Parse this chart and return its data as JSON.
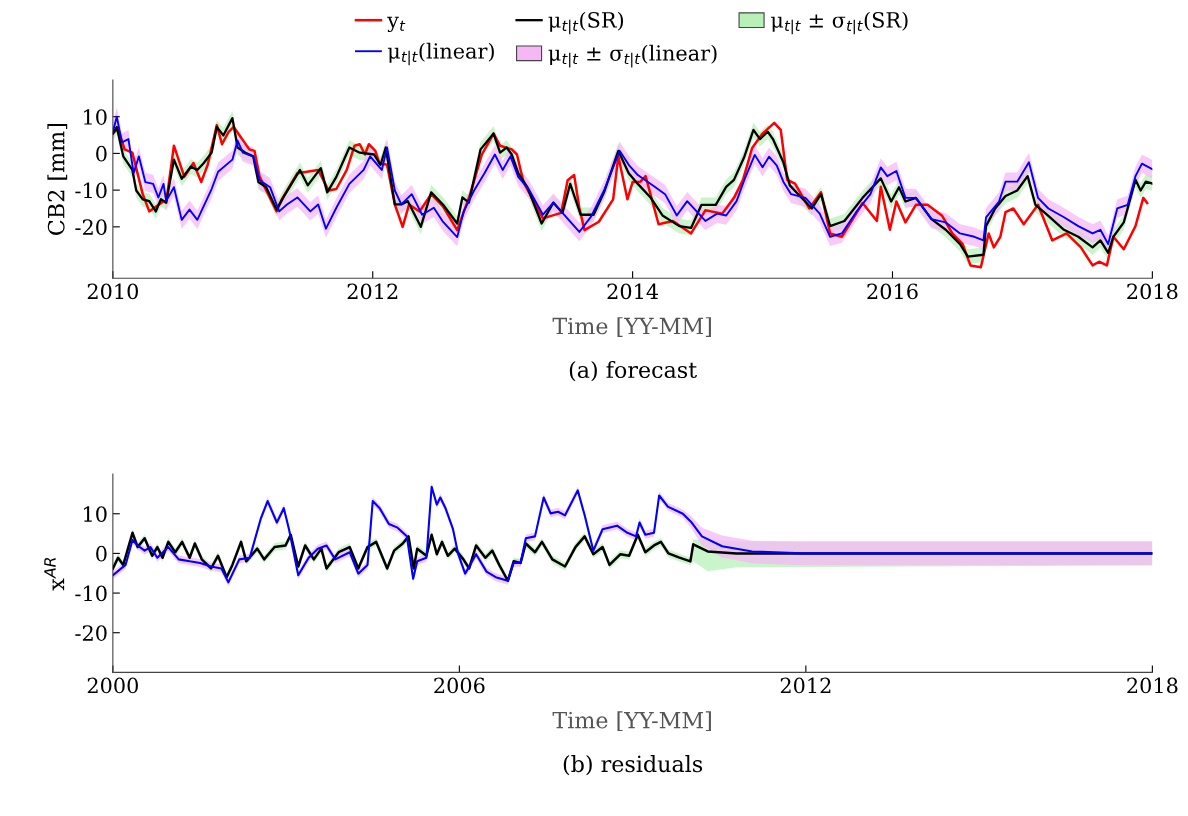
{
  "chart_data": [
    {
      "type": "line",
      "xlabel": "Time [YY-MM]",
      "ylabel": "CB2 [mm]",
      "annotations": [
        "(a) forecast"
      ],
      "xlim": [
        2010,
        2018
      ],
      "xticks": [
        2010,
        2012,
        2014,
        2016,
        2018
      ],
      "ylim": [
        -34,
        20
      ],
      "yticks": [
        -20,
        -10,
        0,
        10
      ],
      "grid": false,
      "legend": "top",
      "marker": "none",
      "line_style": "solid",
      "series": [
        {
          "name": "y$_{t}$",
          "color": "#ff0000",
          "x": [
            2010.0,
            2010.04,
            2010.09,
            2010.15,
            2010.23,
            2010.28,
            2010.39,
            2010.41,
            2010.47,
            2010.55,
            2010.62,
            2010.68,
            2010.73,
            2010.8,
            2010.84,
            2010.89,
            2010.93,
            2011.05,
            2011.09,
            2011.13,
            2011.26,
            2011.3,
            2011.42,
            2011.58,
            2011.66,
            2011.72,
            2011.8,
            2011.86,
            2011.9,
            2011.94,
            2011.97,
            2012.02,
            2012.05,
            2012.11,
            2012.17,
            2012.23,
            2012.28,
            2012.36,
            2012.45,
            2012.54,
            2012.65,
            2012.75,
            2012.84,
            2012.93,
            2012.98,
            2013.07,
            2013.11,
            2013.16,
            2013.31,
            2013.45,
            2013.5,
            2013.55,
            2013.59,
            2013.63,
            2013.74,
            2013.85,
            2013.89,
            2013.96,
            2014.0,
            2014.06,
            2014.1,
            2014.2,
            2014.31,
            2014.45,
            2014.56,
            2014.69,
            2014.78,
            2014.85,
            2014.92,
            2015.0,
            2015.09,
            2015.14,
            2015.19,
            2015.25,
            2015.36,
            2015.45,
            2015.52,
            2015.61,
            2015.77,
            2015.88,
            2015.91,
            2015.98,
            2016.03,
            2016.1,
            2016.18,
            2016.27,
            2016.38,
            2016.46,
            2016.54,
            2016.6,
            2016.68,
            2016.74,
            2016.78,
            2016.83,
            2016.87,
            2016.93,
            2017.01,
            2017.12,
            2017.23,
            2017.34,
            2017.45,
            2017.54,
            2017.59,
            2017.65,
            2017.7,
            2017.78,
            2017.87,
            2017.93,
            2017.96
          ],
          "values": [
            5.4,
            6.8,
            1.1,
            0.2,
            -11.1,
            -15.8,
            -13,
            -13.4,
            2.1,
            -6.4,
            -2.6,
            -7.8,
            -3.1,
            7.7,
            2.5,
            5.8,
            7.2,
            1.1,
            0.7,
            -6.4,
            -15.8,
            -12.5,
            -5.4,
            -4.5,
            -10.1,
            -9.7,
            -4.5,
            2.1,
            2.5,
            -0.3,
            2.5,
            0.7,
            -2.6,
            -3.1,
            -13.9,
            -20,
            -13.9,
            -15.8,
            -11.1,
            -14.4,
            -20.9,
            -11.1,
            -0.3,
            5.4,
            2.1,
            1.1,
            -0.3,
            -7.8,
            -17.7,
            -16.2,
            -7.3,
            -5.9,
            -14.8,
            -20.9,
            -18.6,
            -12.5,
            -0.8,
            -12.5,
            -7.8,
            -7.7,
            -6.2,
            -19.3,
            -18.4,
            -21.8,
            -15.5,
            -16.4,
            -12.1,
            -7.2,
            1.5,
            5.4,
            8.3,
            6.4,
            -7.2,
            -8.2,
            -15,
            -10.6,
            -21.8,
            -22.7,
            -13.5,
            -18.4,
            -9.1,
            -20.8,
            -13.1,
            -18.8,
            -14,
            -14,
            -16.9,
            -21.8,
            -24.7,
            -30.5,
            -31,
            -21.8,
            -25.6,
            -22.7,
            -16,
            -15,
            -19.3,
            -14,
            -23.7,
            -21.8,
            -25.6,
            -30.5,
            -29.5,
            -30.5,
            -22.7,
            -26.1,
            -19.8,
            -12.1,
            -13.5
          ]
        },
        {
          "name": "μ$_{t|t}$(SR)",
          "color": "#000000",
          "x": [
            2010.0,
            2010.03,
            2010.08,
            2010.15,
            2010.18,
            2010.23,
            2010.28,
            2010.33,
            2010.37,
            2010.41,
            2010.47,
            2010.53,
            2010.6,
            2010.65,
            2010.7,
            2010.76,
            2010.8,
            2010.85,
            2010.92,
            2010.96,
            2011.02,
            2011.08,
            2011.12,
            2011.18,
            2011.26,
            2011.32,
            2011.44,
            2011.5,
            2011.6,
            2011.65,
            2011.72,
            2011.82,
            2011.9,
            2012.01,
            2012.06,
            2012.1,
            2012.17,
            2012.22,
            2012.27,
            2012.37,
            2012.45,
            2012.54,
            2012.65,
            2012.69,
            2012.74,
            2012.83,
            2012.93,
            2012.98,
            2013.03,
            2013.07,
            2013.12,
            2013.19,
            2013.3,
            2013.39,
            2013.46,
            2013.52,
            2013.6,
            2013.7,
            2013.78,
            2013.89,
            2013.97,
            2014.04,
            2014.14,
            2014.23,
            2014.36,
            2014.45,
            2014.53,
            2014.64,
            2014.72,
            2014.78,
            2014.86,
            2014.93,
            2014.98,
            2015.04,
            2015.08,
            2015.16,
            2015.21,
            2015.3,
            2015.38,
            2015.45,
            2015.52,
            2015.63,
            2015.77,
            2015.91,
            2015.99,
            2016.05,
            2016.1,
            2016.18,
            2016.3,
            2016.41,
            2016.52,
            2016.58,
            2016.7,
            2016.72,
            2016.79,
            2016.87,
            2016.96,
            2017.04,
            2017.1,
            2017.18,
            2017.32,
            2017.43,
            2017.54,
            2017.6,
            2017.66,
            2017.7,
            2017.78,
            2017.87,
            2017.91,
            2017.95,
            2018.0
          ],
          "values": [
            5.4,
            7.2,
            -0.8,
            -4.5,
            -10.1,
            -12.5,
            -13,
            -15.8,
            -12.5,
            -13.4,
            -1.7,
            -6.9,
            -3.6,
            -4.5,
            -2.6,
            0.2,
            7.2,
            4.9,
            9.6,
            1.6,
            0.2,
            -0.8,
            -7.8,
            -9.2,
            -15.3,
            -11.5,
            -4.5,
            -8.7,
            -4,
            -10.6,
            -6.4,
            1.6,
            0.2,
            -0.3,
            -3.1,
            1.6,
            -13.9,
            -13.9,
            -13,
            -20,
            -10.6,
            -13.9,
            -19.1,
            -12,
            -13.4,
            1.1,
            5.4,
            0.2,
            1.6,
            -0.3,
            -5.4,
            -9.2,
            -19.1,
            -13.4,
            -16.2,
            -8.3,
            -16.7,
            -16.7,
            -10.6,
            0.7,
            -5.4,
            -8.3,
            -12.1,
            -16.9,
            -19.8,
            -20.3,
            -14,
            -14,
            -9.1,
            -7.2,
            -0.9,
            6.4,
            3.9,
            5.9,
            3.9,
            -2.4,
            -8.7,
            -12.1,
            -15,
            -11.1,
            -19.8,
            -18.4,
            -12.1,
            -6.8,
            -13.1,
            -9.2,
            -13.1,
            -12.1,
            -17.9,
            -20.8,
            -24.7,
            -28.1,
            -27.6,
            -19.8,
            -15,
            -11.6,
            -10.1,
            -6.2,
            -14,
            -16.4,
            -20.8,
            -22.7,
            -25.6,
            -23.7,
            -27.1,
            -22.7,
            -18.8,
            -7.2,
            -10.1,
            -7.7,
            -8.2
          ],
          "lower": [
            3.4,
            5.2,
            -2.8,
            -6.5,
            -12.1,
            -14.5,
            -15,
            -17.8,
            -14.5,
            -15.4,
            -3.7,
            -8.9,
            -5.6,
            -6.5,
            -4.6,
            -1.8,
            5.2,
            2.9,
            7.6,
            -0.4,
            -1.8,
            -2.8,
            -9.8,
            -11.2,
            -17.3,
            -13.5,
            -6.5,
            -10.7,
            -6,
            -12.6,
            -8.4,
            -0.4,
            -1.8,
            -2.3,
            -5.1,
            -0.4,
            -15.9,
            -15.9,
            -15,
            -22,
            -12.6,
            -15.9,
            -21.1,
            -14,
            -15.4,
            -0.9,
            3.4,
            -1.8,
            -0.4,
            -2.3,
            -7.4,
            -11.2,
            -21.1,
            -15.4,
            -18.2,
            -10.3,
            -18.7,
            -18.7,
            -12.6,
            -1.3,
            -7.4,
            -10.3,
            -14.1,
            -18.9,
            -21.8,
            -22.3,
            -16,
            -16,
            -11.1,
            -9.2,
            -2.9,
            4.4,
            1.9,
            3.9,
            1.9,
            -4.4,
            -10.7,
            -14.1,
            -17,
            -13.1,
            -21.8,
            -20.4,
            -14.1,
            -8.8,
            -15.1,
            -11.2,
            -15.1,
            -14.1,
            -19.9,
            -22.8,
            -26.7,
            -30.1,
            -29.6,
            -21.8,
            -17,
            -13.6,
            -12.1,
            -8.2,
            -16,
            -18.4,
            -22.8,
            -24.7,
            -27.6,
            -25.7,
            -29.1,
            -24.7,
            -20.8,
            -9.2,
            -12.1,
            -9.7,
            -10.2
          ],
          "upper": [
            7.4,
            9.2,
            1.2,
            -2.5,
            -8.1,
            -10.5,
            -11,
            -13.8,
            -10.5,
            -11.4,
            0.3,
            -4.9,
            -1.6,
            -2.5,
            -0.6,
            2.2,
            9.2,
            6.9,
            11.6,
            3.6,
            2.2,
            1.2,
            -5.8,
            -7.2,
            -13.3,
            -9.5,
            -2.5,
            -6.7,
            -2,
            -8.6,
            -4.4,
            3.6,
            2.2,
            1.7,
            -1.1,
            3.6,
            -11.9,
            -11.9,
            -11,
            -18,
            -8.6,
            -11.9,
            -17.1,
            -10,
            -11.4,
            3.1,
            7.4,
            2.2,
            3.6,
            1.7,
            -3.4,
            -7.2,
            -17.1,
            -11.4,
            -14.2,
            -6.3,
            -14.7,
            -14.7,
            -8.6,
            2.7,
            -3.4,
            -6.3,
            -10.1,
            -14.9,
            -17.8,
            -18.3,
            -12,
            -12,
            -7.1,
            -5.2,
            1.1,
            8.4,
            5.9,
            7.9,
            5.9,
            -0.4,
            -6.7,
            -10.1,
            -13,
            -9.1,
            -17.8,
            -16.4,
            -10.1,
            -4.8,
            -11.1,
            -7.2,
            -11.1,
            -10.1,
            -15.9,
            -18.8,
            -22.7,
            -26.1,
            -25.6,
            -17.8,
            -13,
            -9.6,
            -8.1,
            -4.2,
            -12,
            -14.4,
            -18.8,
            -20.7,
            -23.6,
            -21.7,
            -25.1,
            -20.7,
            -16.8,
            -5.2,
            -8.1,
            -5.7,
            -6.2
          ]
        },
        {
          "name": "μ$_{t|t}$ ± σ$_{t|t}$(SR)",
          "type": "area",
          "color": "#b8f0b8"
        },
        {
          "name": "μ$_{t|t}$(linear)",
          "color": "#0000ff",
          "x": [
            2010.0,
            2010.03,
            2010.07,
            2010.12,
            2010.16,
            2010.2,
            2010.25,
            2010.31,
            2010.35,
            2010.39,
            2010.41,
            2010.47,
            2010.53,
            2010.59,
            2010.65,
            2010.76,
            2010.81,
            2010.92,
            2010.96,
            2011.0,
            2011.08,
            2011.13,
            2011.21,
            2011.28,
            2011.34,
            2011.42,
            2011.52,
            2011.58,
            2011.64,
            2011.72,
            2011.82,
            2011.93,
            2011.98,
            2012.07,
            2012.11,
            2012.17,
            2012.22,
            2012.3,
            2012.38,
            2012.47,
            2012.54,
            2012.65,
            2012.7,
            2012.78,
            2012.86,
            2012.94,
            2013.0,
            2013.06,
            2013.12,
            2013.2,
            2013.31,
            2013.39,
            2013.52,
            2013.59,
            2013.68,
            2013.78,
            2013.9,
            2013.97,
            2014.04,
            2014.17,
            2014.25,
            2014.34,
            2014.42,
            2014.56,
            2014.65,
            2014.72,
            2014.8,
            2014.86,
            2014.94,
            2015.0,
            2015.05,
            2015.11,
            2015.16,
            2015.22,
            2015.33,
            2015.44,
            2015.52,
            2015.61,
            2015.72,
            2015.83,
            2015.91,
            2015.96,
            2016.03,
            2016.1,
            2016.18,
            2016.3,
            2016.41,
            2016.52,
            2016.63,
            2016.7,
            2016.72,
            2016.82,
            2016.87,
            2016.96,
            2017.05,
            2017.12,
            2017.2,
            2017.32,
            2017.43,
            2017.54,
            2017.6,
            2017.66,
            2017.73,
            2017.81,
            2017.87,
            2017.92,
            2018.0
          ],
          "values": [
            5.8,
            10,
            3,
            3.9,
            -5.4,
            -0.8,
            -7.8,
            -8.3,
            -12,
            -8.3,
            -13,
            -9.2,
            -18.1,
            -15.3,
            -18.1,
            -9.7,
            -5,
            -1.7,
            3.5,
            0.2,
            -0.8,
            -7.3,
            -9.2,
            -15.8,
            -13.9,
            -12,
            -15.8,
            -13.9,
            -20.5,
            -14.8,
            -8.3,
            -4.5,
            -0.8,
            -4.5,
            1.6,
            -10.1,
            -13.9,
            -11.1,
            -16.7,
            -14.8,
            -18.6,
            -22.8,
            -15.8,
            -10.1,
            -5.4,
            -0.3,
            -4.5,
            -0.8,
            -6.4,
            -9.7,
            -16.7,
            -13.4,
            -18.6,
            -21.4,
            -17.2,
            -10.1,
            0.7,
            -3.1,
            -5.9,
            -9.1,
            -11.1,
            -16.9,
            -13,
            -18.4,
            -16.4,
            -16.9,
            -13,
            -7.2,
            -0.4,
            -3.8,
            -0.9,
            -3.3,
            -7.7,
            -11.1,
            -12.1,
            -16.4,
            -22.7,
            -21.8,
            -16,
            -11.1,
            -3.8,
            -6.2,
            -4.8,
            -12.1,
            -12.1,
            -17.9,
            -18.8,
            -21.8,
            -22.7,
            -23.7,
            -17.4,
            -13.1,
            -7.7,
            -7.7,
            -2.4,
            -12.1,
            -15,
            -17.4,
            -19.8,
            -21.8,
            -20.8,
            -24.7,
            -15,
            -14,
            -6.2,
            -2.8,
            -4.3
          ],
          "lower": [
            3.3,
            7.5,
            0.5,
            1.4,
            -7.9,
            -3.3,
            -10.3,
            -10.8,
            -14.5,
            -10.8,
            -15.5,
            -11.7,
            -20.6,
            -17.8,
            -20.6,
            -12.2,
            -7.5,
            -4.2,
            1,
            -2.3,
            -3.3,
            -9.8,
            -11.7,
            -18.3,
            -16.4,
            -14.5,
            -18.3,
            -16.4,
            -23,
            -17.3,
            -10.8,
            -7,
            -3.3,
            -7,
            -0.9,
            -12.6,
            -16.4,
            -13.6,
            -19.2,
            -17.3,
            -21.1,
            -25.3,
            -18.3,
            -12.6,
            -7.9,
            -2.8,
            -7,
            -3.3,
            -8.9,
            -12.2,
            -19.2,
            -15.9,
            -21.1,
            -23.9,
            -19.7,
            -12.6,
            -1.8,
            -5.6,
            -8.4,
            -11.6,
            -13.6,
            -19.4,
            -15.5,
            -20.9,
            -18.9,
            -19.4,
            -15.5,
            -9.7,
            -2.9,
            -6.3,
            -3.4,
            -5.8,
            -10.2,
            -13.6,
            -14.6,
            -18.9,
            -25.2,
            -24.3,
            -18.5,
            -13.6,
            -6.3,
            -8.7,
            -7.3,
            -14.6,
            -14.6,
            -20.4,
            -21.3,
            -24.3,
            -25.2,
            -26.2,
            -19.9,
            -15.6,
            -10.2,
            -10.2,
            -4.9,
            -14.6,
            -17.5,
            -19.9,
            -22.3,
            -24.3,
            -23.3,
            -27.2,
            -17.5,
            -16.5,
            -8.7,
            -5.3,
            -6.8
          ],
          "upper": [
            8.3,
            12.5,
            5.5,
            6.4,
            -2.9,
            1.7,
            -5.3,
            -5.8,
            -9.5,
            -5.8,
            -10.5,
            -6.7,
            -15.6,
            -12.8,
            -15.6,
            -7.2,
            -2.5,
            0.8,
            6,
            2.7,
            1.7,
            -4.8,
            -6.7,
            -13.3,
            -11.4,
            -9.5,
            -13.3,
            -11.4,
            -18,
            -12.3,
            -5.8,
            -2,
            1.7,
            -2,
            4.1,
            -7.6,
            -11.4,
            -8.6,
            -14.2,
            -12.3,
            -16.1,
            -20.3,
            -13.3,
            -7.6,
            -2.9,
            2.2,
            -2,
            1.7,
            -3.9,
            -7.2,
            -14.2,
            -10.9,
            -16.1,
            -18.9,
            -14.7,
            -7.6,
            3.2,
            -0.6,
            -3.4,
            -6.6,
            -8.6,
            -14.4,
            -10.5,
            -15.9,
            -13.9,
            -14.4,
            -10.5,
            -4.7,
            2.1,
            -1.3,
            1.6,
            -0.8,
            -5.2,
            -8.6,
            -9.6,
            -13.9,
            -20.2,
            -19.3,
            -13.5,
            -8.6,
            -1.3,
            -3.7,
            -2.3,
            -9.6,
            -9.6,
            -15.4,
            -16.3,
            -19.3,
            -20.2,
            -21.2,
            -14.9,
            -10.6,
            -5.2,
            -5.2,
            0.1,
            -9.6,
            -12.5,
            -14.9,
            -17.3,
            -19.3,
            -18.3,
            -22.2,
            -12.5,
            -11.5,
            -3.7,
            -0.3,
            -1.8
          ]
        },
        {
          "name": "μ$_{t|t}$ ± σ$_{t|t}$(linear)",
          "type": "area",
          "color": "#f5b8f5"
        }
      ]
    },
    {
      "type": "line",
      "xlabel": "Time [YY-MM]",
      "ylabel": "x$^{AR}$",
      "annotations": [
        "(b) residuals"
      ],
      "xlim": [
        2000,
        2018
      ],
      "xticks": [
        2000,
        2006,
        2012,
        2018
      ],
      "ylim": [
        -30,
        20
      ],
      "yticks": [
        -20,
        -10,
        0,
        10
      ],
      "grid": false,
      "marker": "none",
      "line_style": "solid",
      "series": [
        {
          "color": "#000000",
          "x": [
            2000.0,
            2000.09,
            2000.18,
            2000.34,
            2000.43,
            2000.55,
            2000.68,
            2000.77,
            2000.86,
            2000.96,
            2001.08,
            2001.2,
            2001.33,
            2001.42,
            2001.54,
            2001.7,
            2001.82,
            2001.97,
            2002.07,
            2002.22,
            2002.31,
            2002.5,
            2002.62,
            2002.8,
            2002.99,
            2003.08,
            2003.21,
            2003.33,
            2003.48,
            2003.61,
            2003.7,
            2003.91,
            2004.1,
            2004.25,
            2004.41,
            2004.56,
            2004.75,
            2004.87,
            2005.02,
            2005.12,
            2005.21,
            2005.27,
            2005.43,
            2005.52,
            2005.61,
            2005.7,
            2005.8,
            2005.92,
            2006.07,
            2006.17,
            2006.29,
            2006.45,
            2006.57,
            2006.69,
            2006.84,
            2006.94,
            2007.06,
            2007.15,
            2007.31,
            2007.43,
            2007.61,
            2007.83,
            2008.01,
            2008.17,
            2008.32,
            2008.48,
            2008.6,
            2008.79,
            2008.94,
            2009.09,
            2009.22,
            2009.37,
            2009.49,
            2009.62,
            2009.8,
            2010.0,
            2010.05,
            2010.3,
            2010.8,
            2018.0
          ],
          "values": [
            -3.8,
            -1.1,
            -2.9,
            5.2,
            1.6,
            3.8,
            -0.6,
            1.6,
            -1.1,
            2.9,
            0.3,
            2.9,
            -1.1,
            2.5,
            -1.5,
            -3.8,
            -0.6,
            -6,
            -2.9,
            2.9,
            -2,
            1.2,
            -1.5,
            1.6,
            2,
            4.7,
            -3.3,
            2,
            -1.5,
            1.2,
            -3.8,
            0.3,
            1.6,
            -3.8,
            1.6,
            2.9,
            -3.8,
            0.7,
            2.5,
            4.3,
            -3.8,
            1.2,
            -0.6,
            4.7,
            -0.2,
            2.9,
            -0.6,
            1.2,
            -1.5,
            -3.8,
            2,
            -1.1,
            0.7,
            -2.9,
            -6.9,
            -2,
            -2.4,
            2.5,
            0.3,
            2.9,
            -1.5,
            -3.3,
            1.6,
            4.3,
            -0.2,
            1.6,
            -2.9,
            -0.2,
            -0.6,
            4.7,
            0.3,
            2,
            2.9,
            0,
            -1,
            -2,
            2.3,
            0.5,
            0,
            0
          ],
          "lower": [
            -4.8,
            -2.1,
            -3.9,
            4.2,
            0.6,
            2.8,
            -1.6,
            0.6,
            -2.1,
            1.9,
            -0.7,
            1.9,
            -2.1,
            1.5,
            -2.5,
            -4.8,
            -1.6,
            -7,
            -3.9,
            1.9,
            -3,
            0.2,
            -2.5,
            0.6,
            1,
            3.7,
            -4.3,
            1,
            -2.5,
            0.2,
            -4.8,
            -0.7,
            0.6,
            -4.8,
            0.6,
            1.9,
            -4.8,
            -0.3,
            1.5,
            3.3,
            -4.8,
            0.2,
            -1.6,
            3.7,
            -1.2,
            1.9,
            -1.6,
            0.2,
            -2.5,
            -4.8,
            1,
            -2.1,
            -0.3,
            -3.9,
            -7.9,
            -3,
            -3.4,
            1.5,
            -0.7,
            1.9,
            -2.5,
            -4.3,
            0.6,
            3.3,
            -1.2,
            0.6,
            -3.9,
            -1.2,
            -1.6,
            3.7,
            -0.7,
            1,
            1.9,
            -1,
            -2,
            -3,
            -2,
            -4.5,
            -3.5,
            -3
          ],
          "upper": [
            -2.8,
            -0.1,
            -1.9,
            6.2,
            2.6,
            4.8,
            0.4,
            2.6,
            -0.1,
            3.9,
            1.3,
            3.9,
            -0.1,
            3.5,
            -0.5,
            -2.8,
            0.4,
            -5,
            -1.9,
            3.9,
            -1,
            2.2,
            -0.5,
            2.6,
            3,
            5.7,
            -2.3,
            3,
            -0.5,
            2.2,
            -2.8,
            1.3,
            2.6,
            -2.8,
            2.6,
            3.9,
            -2.8,
            1.7,
            3.5,
            5.3,
            -2.8,
            2.2,
            0.4,
            5.7,
            0.8,
            3.9,
            0.4,
            2.2,
            -0.5,
            -2.8,
            3,
            -0.1,
            1.7,
            -1.9,
            -5.9,
            -1,
            -1.4,
            3.5,
            1.3,
            3.9,
            -0.5,
            -2.3,
            2.6,
            5.3,
            0.8,
            2.6,
            -1.9,
            0.8,
            0.4,
            5.7,
            1.3,
            3,
            3.9,
            1,
            0,
            -1,
            3.5,
            3.5,
            3,
            3
          ]
        },
        {
          "type": "area",
          "color": "#b8f0b8"
        },
        {
          "color": "#0000ff",
          "x": [
            2000.0,
            2000.22,
            2000.34,
            2000.43,
            2000.55,
            2000.65,
            2000.77,
            2000.96,
            2001.14,
            2001.33,
            2001.51,
            2001.7,
            2001.88,
            2002.0,
            2002.19,
            2002.37,
            2002.56,
            2002.68,
            2002.84,
            2002.96,
            2003.05,
            2003.21,
            2003.39,
            2003.55,
            2003.7,
            2003.85,
            2004.1,
            2004.25,
            2004.41,
            2004.5,
            2004.62,
            2004.78,
            2004.93,
            2005.09,
            2005.2,
            2005.27,
            2005.43,
            2005.52,
            2005.61,
            2005.67,
            2005.76,
            2005.89,
            2005.98,
            2006.1,
            2006.29,
            2006.47,
            2006.63,
            2006.84,
            2006.94,
            2007.06,
            2007.15,
            2007.31,
            2007.46,
            2007.58,
            2007.71,
            2007.83,
            2008.05,
            2008.17,
            2008.32,
            2008.48,
            2008.73,
            2008.91,
            2009.06,
            2009.12,
            2009.22,
            2009.37,
            2009.46,
            2009.61,
            2009.87,
            2010.01,
            2010.2,
            2010.55,
            2011.07,
            2011.93,
            2018.0
          ],
          "values": [
            -5.5,
            -2.9,
            3.4,
            2,
            0.7,
            1.6,
            -1.1,
            1.6,
            -1.5,
            -2,
            -2.4,
            -3.3,
            -3.8,
            -7.3,
            -1.5,
            -1.1,
            8.7,
            13.2,
            7.8,
            11.4,
            6.1,
            -5.5,
            -1.1,
            1.2,
            2,
            -1.5,
            0.3,
            -5.1,
            -2.9,
            13.2,
            11.4,
            7.4,
            6.5,
            4.3,
            -6.4,
            -2,
            -1.1,
            16.8,
            12.3,
            14.1,
            11.4,
            6.1,
            -0.2,
            -5.1,
            -0.2,
            -4.6,
            -6,
            -6.9,
            -2.4,
            -2.4,
            3.8,
            4.3,
            14.1,
            10.1,
            10.5,
            9.6,
            15.9,
            9.6,
            0.7,
            6.1,
            7,
            5.2,
            4.3,
            7.8,
            4.7,
            5.2,
            14.6,
            11.8,
            10,
            8,
            4.3,
            1.8,
            0.5,
            0,
            0
          ],
          "lower": [
            -6.5,
            -3.9,
            2.4,
            1,
            -0.3,
            0.6,
            -2.1,
            0.6,
            -2.5,
            -3,
            -3.4,
            -4.3,
            -4.8,
            -8.3,
            -2.5,
            -2.1,
            7.7,
            12.2,
            6.8,
            10.4,
            5.1,
            -6.5,
            -2.1,
            0.2,
            1,
            -2.5,
            -0.7,
            -6.1,
            -3.9,
            12.2,
            10.4,
            6.4,
            5.5,
            3.3,
            -7.4,
            -3,
            -2.1,
            15.8,
            11.3,
            13.1,
            10.4,
            5.1,
            -1.2,
            -6.1,
            -1.2,
            -5.6,
            -7,
            -7.9,
            -3.4,
            -3.4,
            2.8,
            3.3,
            13.1,
            9.1,
            9.5,
            8.6,
            14.9,
            8.6,
            -0.3,
            5.1,
            6,
            4.2,
            3.3,
            6.8,
            3.7,
            4.2,
            13.6,
            10.8,
            9,
            6.5,
            2,
            -1,
            -2.5,
            -3,
            -3
          ],
          "upper": [
            -4.5,
            -1.9,
            4.4,
            3,
            1.7,
            2.6,
            -0.1,
            2.6,
            -0.5,
            -1,
            -1.4,
            -2.3,
            -2.8,
            -6.3,
            -0.5,
            -0.1,
            9.7,
            14.2,
            8.8,
            12.4,
            7.1,
            -4.5,
            -0.1,
            2.2,
            3,
            -0.5,
            1.3,
            -4.1,
            -1.9,
            14.2,
            12.4,
            8.4,
            7.5,
            5.3,
            -5.4,
            -1,
            -0.1,
            17.8,
            13.3,
            15.1,
            12.4,
            7.1,
            0.8,
            -4.1,
            0.8,
            -3.6,
            -5,
            -5.9,
            -1.4,
            -1.4,
            4.8,
            5.3,
            15.1,
            11.1,
            11.5,
            10.6,
            16.9,
            10.6,
            1.7,
            7.1,
            8,
            6.2,
            5.3,
            8.8,
            5.7,
            6.2,
            15.6,
            12.8,
            11,
            9.5,
            6.5,
            4.5,
            3.2,
            3,
            3
          ]
        },
        {
          "type": "area",
          "color": "#f5b8f5"
        }
      ]
    }
  ]
}
